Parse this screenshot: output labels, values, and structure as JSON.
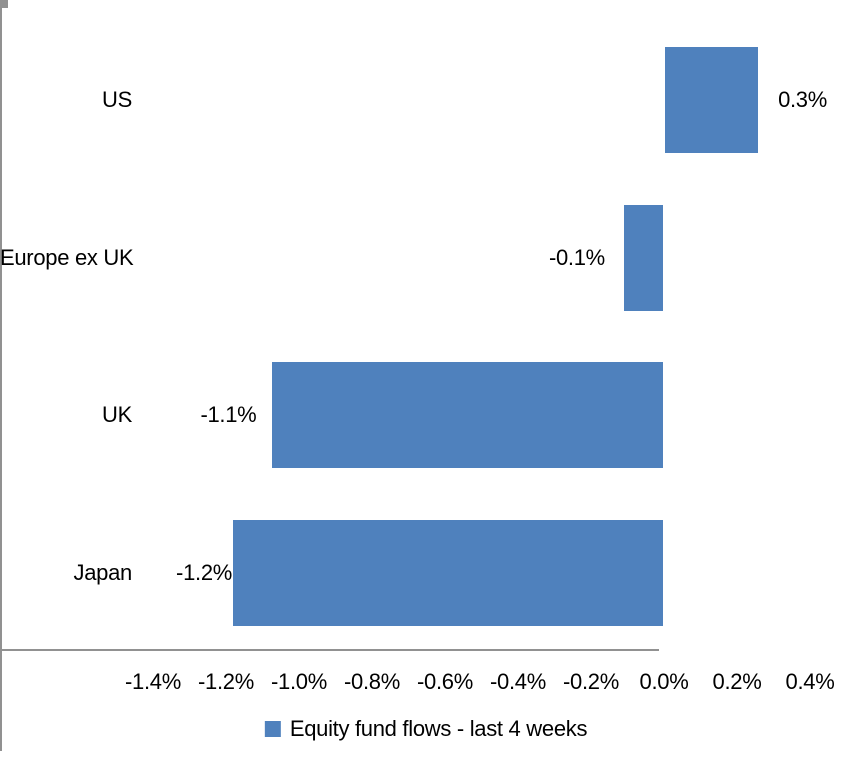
{
  "chart_data": {
    "type": "bar",
    "orientation": "horizontal",
    "title": "",
    "categories": [
      "US",
      "Europe ex UK",
      "UK",
      "Japan"
    ],
    "values": [
      0.3,
      -0.1,
      -1.1,
      -1.2
    ],
    "values_precise": [
      0.255,
      -0.107,
      -1.07,
      -1.178
    ],
    "data_labels": [
      "0.3%",
      "-0.1%",
      "-1.1%",
      "-1.2%"
    ],
    "x_tick_labels": [
      "-1.4%",
      "-1.2%",
      "-1.0%",
      "-0.8%",
      "-0.6%",
      "-0.4%",
      "-0.2%",
      "0.0%",
      "0.2%",
      "0.4%"
    ],
    "x_tick_values": [
      -1.4,
      -1.2,
      -1.0,
      -0.8,
      -0.6,
      -0.4,
      -0.2,
      0.0,
      0.2,
      0.4
    ],
    "xlim": [
      -1.4,
      0.4
    ],
    "unit": "%",
    "grid": false,
    "legend": {
      "label": "Equity fund flows - last 4 weeks",
      "position": "bottom"
    },
    "colors": {
      "bar": "#4F81BD",
      "axis": "#919191",
      "text": "#000000",
      "background": "#FFFFFF"
    }
  }
}
